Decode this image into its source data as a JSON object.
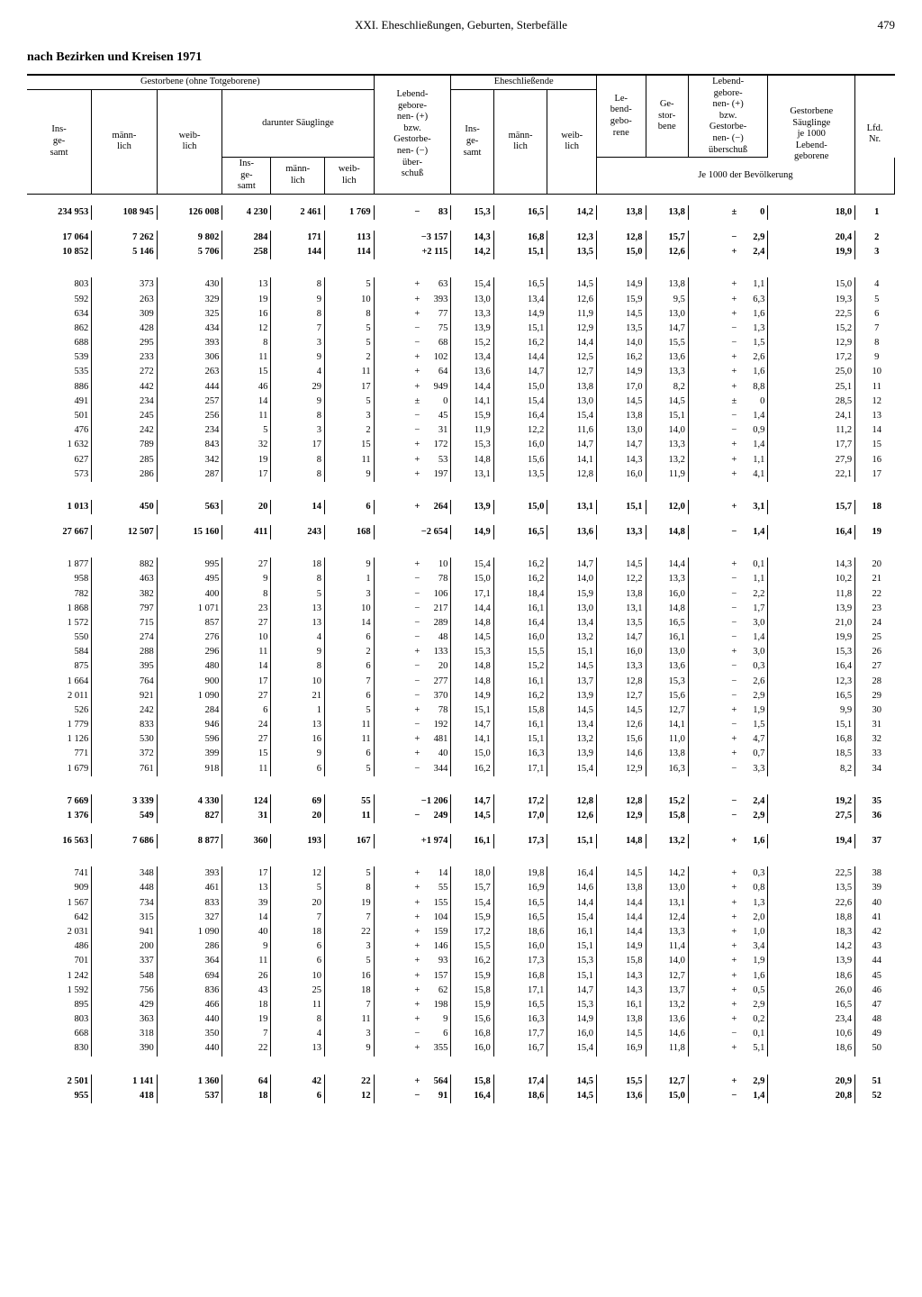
{
  "page": {
    "running_head": "XXI. Eheschließungen, Geburten, Sterbefälle",
    "page_number": "479",
    "title": "nach Bezirken und Kreisen 1971"
  },
  "headers": {
    "gestorben_span": "Gestorbene (ohne Totgeborene)",
    "insgesamt": "Ins-\nge-\nsamt",
    "maennlich": "männ-\nlich",
    "weiblich": "weib-\nlich",
    "saeuglinge_span": "darunter Säuglinge",
    "lebend_ueberschuss": "Lebend-\ngebore-\nnen- (+)\nbzw.\nGestorbe-\nnen- (−)\nüber-\nschuß",
    "eheschliessende": "Eheschließende",
    "lebendgeborene": "Le-\nbend-\ngebo-\nrene",
    "gestorbene": "Ge-\nstor-\nbene",
    "lebend_ueberschuss2": "Lebend-\ngebore-\nnen- (+)\nbzw.\nGestorbe-\nnen- (−)\nüberschuß",
    "gest_saeug": "Gestorbene\nSäuglinge\nje 1000\nLebend-\ngeborene",
    "lfd": "Lfd.\nNr.",
    "je1000": "Je 1000 der Bevölkerung"
  },
  "rows": [
    {
      "b": 1,
      "c": [
        "234 953",
        "108 945",
        "126 008",
        "4 230",
        "2 461",
        "1 769",
        "−",
        "83",
        "15,3",
        "16,5",
        "14,2",
        "13,8",
        "13,8",
        "±",
        "0",
        "18,0",
        "1"
      ]
    },
    {
      "gap": 1
    },
    {
      "b": 1,
      "c": [
        "17 064",
        "7 262",
        "9 802",
        "284",
        "171",
        "113",
        "",
        "−3 157",
        "14,3",
        "16,8",
        "12,3",
        "12,8",
        "15,7",
        "−",
        "2,9",
        "20,4",
        "2"
      ]
    },
    {
      "b": 1,
      "c": [
        "10 852",
        "5 146",
        "5 706",
        "258",
        "144",
        "114",
        "",
        "+2 115",
        "14,2",
        "15,1",
        "13,5",
        "15,0",
        "12,6",
        "+",
        "2,4",
        "19,9",
        "3"
      ]
    },
    {
      "biggap": 1
    },
    {
      "c": [
        "803",
        "373",
        "430",
        "13",
        "8",
        "5",
        "+",
        "63",
        "15,4",
        "16,5",
        "14,5",
        "14,9",
        "13,8",
        "+",
        "1,1",
        "15,0",
        "4"
      ]
    },
    {
      "c": [
        "592",
        "263",
        "329",
        "19",
        "9",
        "10",
        "+",
        "393",
        "13,0",
        "13,4",
        "12,6",
        "15,9",
        "9,5",
        "+",
        "6,3",
        "19,3",
        "5"
      ]
    },
    {
      "c": [
        "634",
        "309",
        "325",
        "16",
        "8",
        "8",
        "+",
        "77",
        "13,3",
        "14,9",
        "11,9",
        "14,5",
        "13,0",
        "+",
        "1,6",
        "22,5",
        "6"
      ]
    },
    {
      "c": [
        "862",
        "428",
        "434",
        "12",
        "7",
        "5",
        "−",
        "75",
        "13,9",
        "15,1",
        "12,9",
        "13,5",
        "14,7",
        "−",
        "1,3",
        "15,2",
        "7"
      ]
    },
    {
      "c": [
        "688",
        "295",
        "393",
        "8",
        "3",
        "5",
        "−",
        "68",
        "15,2",
        "16,2",
        "14,4",
        "14,0",
        "15,5",
        "−",
        "1,5",
        "12,9",
        "8"
      ]
    },
    {
      "c": [
        "539",
        "233",
        "306",
        "11",
        "9",
        "2",
        "+",
        "102",
        "13,4",
        "14,4",
        "12,5",
        "16,2",
        "13,6",
        "+",
        "2,6",
        "17,2",
        "9"
      ]
    },
    {
      "c": [
        "535",
        "272",
        "263",
        "15",
        "4",
        "11",
        "+",
        "64",
        "13,6",
        "14,7",
        "12,7",
        "14,9",
        "13,3",
        "+",
        "1,6",
        "25,0",
        "10"
      ]
    },
    {
      "c": [
        "886",
        "442",
        "444",
        "46",
        "29",
        "17",
        "+",
        "949",
        "14,4",
        "15,0",
        "13,8",
        "17,0",
        "8,2",
        "+",
        "8,8",
        "25,1",
        "11"
      ]
    },
    {
      "c": [
        "491",
        "234",
        "257",
        "14",
        "9",
        "5",
        "±",
        "0",
        "14,1",
        "15,4",
        "13,0",
        "14,5",
        "14,5",
        "±",
        "0",
        "28,5",
        "12"
      ]
    },
    {
      "c": [
        "501",
        "245",
        "256",
        "11",
        "8",
        "3",
        "−",
        "45",
        "15,9",
        "16,4",
        "15,4",
        "13,8",
        "15,1",
        "−",
        "1,4",
        "24,1",
        "13"
      ]
    },
    {
      "c": [
        "476",
        "242",
        "234",
        "5",
        "3",
        "2",
        "−",
        "31",
        "11,9",
        "12,2",
        "11,6",
        "13,0",
        "14,0",
        "−",
        "0,9",
        "11,2",
        "14"
      ]
    },
    {
      "c": [
        "1 632",
        "789",
        "843",
        "32",
        "17",
        "15",
        "+",
        "172",
        "15,3",
        "16,0",
        "14,7",
        "14,7",
        "13,3",
        "+",
        "1,4",
        "17,7",
        "15"
      ]
    },
    {
      "c": [
        "627",
        "285",
        "342",
        "19",
        "8",
        "11",
        "+",
        "53",
        "14,8",
        "15,6",
        "14,1",
        "14,3",
        "13,2",
        "+",
        "1,1",
        "27,9",
        "16"
      ]
    },
    {
      "c": [
        "573",
        "286",
        "287",
        "17",
        "8",
        "9",
        "+",
        "197",
        "13,1",
        "13,5",
        "12,8",
        "16,0",
        "11,9",
        "+",
        "4,1",
        "22,1",
        "17"
      ]
    },
    {
      "biggap": 1
    },
    {
      "b": 1,
      "c": [
        "1 013",
        "450",
        "563",
        "20",
        "14",
        "6",
        "+",
        "264",
        "13,9",
        "15,0",
        "13,1",
        "15,1",
        "12,0",
        "+",
        "3,1",
        "15,7",
        "18"
      ]
    },
    {
      "gap": 1
    },
    {
      "b": 1,
      "c": [
        "27 667",
        "12 507",
        "15 160",
        "411",
        "243",
        "168",
        "",
        "−2 654",
        "14,9",
        "16,5",
        "13,6",
        "13,3",
        "14,8",
        "−",
        "1,4",
        "16,4",
        "19"
      ]
    },
    {
      "biggap": 1
    },
    {
      "c": [
        "1 877",
        "882",
        "995",
        "27",
        "18",
        "9",
        "+",
        "10",
        "15,4",
        "16,2",
        "14,7",
        "14,5",
        "14,4",
        "+",
        "0,1",
        "14,3",
        "20"
      ]
    },
    {
      "c": [
        "958",
        "463",
        "495",
        "9",
        "8",
        "1",
        "−",
        "78",
        "15,0",
        "16,2",
        "14,0",
        "12,2",
        "13,3",
        "−",
        "1,1",
        "10,2",
        "21"
      ]
    },
    {
      "c": [
        "782",
        "382",
        "400",
        "8",
        "5",
        "3",
        "−",
        "106",
        "17,1",
        "18,4",
        "15,9",
        "13,8",
        "16,0",
        "−",
        "2,2",
        "11,8",
        "22"
      ]
    },
    {
      "c": [
        "1 868",
        "797",
        "1 071",
        "23",
        "13",
        "10",
        "−",
        "217",
        "14,4",
        "16,1",
        "13,0",
        "13,1",
        "14,8",
        "−",
        "1,7",
        "13,9",
        "23"
      ]
    },
    {
      "c": [
        "1 572",
        "715",
        "857",
        "27",
        "13",
        "14",
        "−",
        "289",
        "14,8",
        "16,4",
        "13,4",
        "13,5",
        "16,5",
        "−",
        "3,0",
        "21,0",
        "24"
      ]
    },
    {
      "c": [
        "550",
        "274",
        "276",
        "10",
        "4",
        "6",
        "−",
        "48",
        "14,5",
        "16,0",
        "13,2",
        "14,7",
        "16,1",
        "−",
        "1,4",
        "19,9",
        "25"
      ]
    },
    {
      "c": [
        "584",
        "288",
        "296",
        "11",
        "9",
        "2",
        "+",
        "133",
        "15,3",
        "15,5",
        "15,1",
        "16,0",
        "13,0",
        "+",
        "3,0",
        "15,3",
        "26"
      ]
    },
    {
      "c": [
        "875",
        "395",
        "480",
        "14",
        "8",
        "6",
        "−",
        "20",
        "14,8",
        "15,2",
        "14,5",
        "13,3",
        "13,6",
        "−",
        "0,3",
        "16,4",
        "27"
      ]
    },
    {
      "c": [
        "1 664",
        "764",
        "900",
        "17",
        "10",
        "7",
        "−",
        "277",
        "14,8",
        "16,1",
        "13,7",
        "12,8",
        "15,3",
        "−",
        "2,6",
        "12,3",
        "28"
      ]
    },
    {
      "c": [
        "2 011",
        "921",
        "1 090",
        "27",
        "21",
        "6",
        "−",
        "370",
        "14,9",
        "16,2",
        "13,9",
        "12,7",
        "15,6",
        "−",
        "2,9",
        "16,5",
        "29"
      ]
    },
    {
      "c": [
        "526",
        "242",
        "284",
        "6",
        "1",
        "5",
        "+",
        "78",
        "15,1",
        "15,8",
        "14,5",
        "14,5",
        "12,7",
        "+",
        "1,9",
        "9,9",
        "30"
      ]
    },
    {
      "c": [
        "1 779",
        "833",
        "946",
        "24",
        "13",
        "11",
        "−",
        "192",
        "14,7",
        "16,1",
        "13,4",
        "12,6",
        "14,1",
        "−",
        "1,5",
        "15,1",
        "31"
      ]
    },
    {
      "c": [
        "1 126",
        "530",
        "596",
        "27",
        "16",
        "11",
        "+",
        "481",
        "14,1",
        "15,1",
        "13,2",
        "15,6",
        "11,0",
        "+",
        "4,7",
        "16,8",
        "32"
      ]
    },
    {
      "c": [
        "771",
        "372",
        "399",
        "15",
        "9",
        "6",
        "+",
        "40",
        "15,0",
        "16,3",
        "13,9",
        "14,6",
        "13,8",
        "+",
        "0,7",
        "18,5",
        "33"
      ]
    },
    {
      "c": [
        "1 679",
        "761",
        "918",
        "11",
        "6",
        "5",
        "−",
        "344",
        "16,2",
        "17,1",
        "15,4",
        "12,9",
        "16,3",
        "−",
        "3,3",
        "8,2",
        "34"
      ]
    },
    {
      "biggap": 1
    },
    {
      "b": 1,
      "c": [
        "7 669",
        "3 339",
        "4 330",
        "124",
        "69",
        "55",
        "",
        "−1 206",
        "14,7",
        "17,2",
        "12,8",
        "12,8",
        "15,2",
        "−",
        "2,4",
        "19,2",
        "35"
      ]
    },
    {
      "b": 1,
      "c": [
        "1 376",
        "549",
        "827",
        "31",
        "20",
        "11",
        "−",
        "249",
        "14,5",
        "17,0",
        "12,6",
        "12,9",
        "15,8",
        "−",
        "2,9",
        "27,5",
        "36"
      ]
    },
    {
      "gap": 1
    },
    {
      "b": 1,
      "c": [
        "16 563",
        "7 686",
        "8 877",
        "360",
        "193",
        "167",
        "",
        "+1 974",
        "16,1",
        "17,3",
        "15,1",
        "14,8",
        "13,2",
        "+",
        "1,6",
        "19,4",
        "37"
      ]
    },
    {
      "biggap": 1
    },
    {
      "c": [
        "741",
        "348",
        "393",
        "17",
        "12",
        "5",
        "+",
        "14",
        "18,0",
        "19,8",
        "16,4",
        "14,5",
        "14,2",
        "+",
        "0,3",
        "22,5",
        "38"
      ]
    },
    {
      "c": [
        "909",
        "448",
        "461",
        "13",
        "5",
        "8",
        "+",
        "55",
        "15,7",
        "16,9",
        "14,6",
        "13,8",
        "13,0",
        "+",
        "0,8",
        "13,5",
        "39"
      ]
    },
    {
      "c": [
        "1 567",
        "734",
        "833",
        "39",
        "20",
        "19",
        "+",
        "155",
        "15,4",
        "16,5",
        "14,4",
        "14,4",
        "13,1",
        "+",
        "1,3",
        "22,6",
        "40"
      ]
    },
    {
      "c": [
        "642",
        "315",
        "327",
        "14",
        "7",
        "7",
        "+",
        "104",
        "15,9",
        "16,5",
        "15,4",
        "14,4",
        "12,4",
        "+",
        "2,0",
        "18,8",
        "41"
      ]
    },
    {
      "c": [
        "2 031",
        "941",
        "1 090",
        "40",
        "18",
        "22",
        "+",
        "159",
        "17,2",
        "18,6",
        "16,1",
        "14,4",
        "13,3",
        "+",
        "1,0",
        "18,3",
        "42"
      ]
    },
    {
      "c": [
        "486",
        "200",
        "286",
        "9",
        "6",
        "3",
        "+",
        "146",
        "15,5",
        "16,0",
        "15,1",
        "14,9",
        "11,4",
        "+",
        "3,4",
        "14,2",
        "43"
      ]
    },
    {
      "c": [
        "701",
        "337",
        "364",
        "11",
        "6",
        "5",
        "+",
        "93",
        "16,2",
        "17,3",
        "15,3",
        "15,8",
        "14,0",
        "+",
        "1,9",
        "13,9",
        "44"
      ]
    },
    {
      "c": [
        "1 242",
        "548",
        "694",
        "26",
        "10",
        "16",
        "+",
        "157",
        "15,9",
        "16,8",
        "15,1",
        "14,3",
        "12,7",
        "+",
        "1,6",
        "18,6",
        "45"
      ]
    },
    {
      "c": [
        "1 592",
        "756",
        "836",
        "43",
        "25",
        "18",
        "+",
        "62",
        "15,8",
        "17,1",
        "14,7",
        "14,3",
        "13,7",
        "+",
        "0,5",
        "26,0",
        "46"
      ]
    },
    {
      "c": [
        "895",
        "429",
        "466",
        "18",
        "11",
        "7",
        "+",
        "198",
        "15,9",
        "16,5",
        "15,3",
        "16,1",
        "13,2",
        "+",
        "2,9",
        "16,5",
        "47"
      ]
    },
    {
      "c": [
        "803",
        "363",
        "440",
        "19",
        "8",
        "11",
        "+",
        "9",
        "15,6",
        "16,3",
        "14,9",
        "13,8",
        "13,6",
        "+",
        "0,2",
        "23,4",
        "48"
      ]
    },
    {
      "c": [
        "668",
        "318",
        "350",
        "7",
        "4",
        "3",
        "−",
        "6",
        "16,8",
        "17,7",
        "16,0",
        "14,5",
        "14,6",
        "−",
        "0,1",
        "10,6",
        "49"
      ]
    },
    {
      "c": [
        "830",
        "390",
        "440",
        "22",
        "13",
        "9",
        "+",
        "355",
        "16,0",
        "16,7",
        "15,4",
        "16,9",
        "11,8",
        "+",
        "5,1",
        "18,6",
        "50"
      ]
    },
    {
      "biggap": 1
    },
    {
      "b": 1,
      "c": [
        "2 501",
        "1 141",
        "1 360",
        "64",
        "42",
        "22",
        "+",
        "564",
        "15,8",
        "17,4",
        "14,5",
        "15,5",
        "12,7",
        "+",
        "2,9",
        "20,9",
        "51"
      ]
    },
    {
      "b": 1,
      "c": [
        "955",
        "418",
        "537",
        "18",
        "6",
        "12",
        "−",
        "91",
        "16,4",
        "18,6",
        "14,5",
        "13,6",
        "15,0",
        "−",
        "1,4",
        "20,8",
        "52"
      ]
    }
  ]
}
